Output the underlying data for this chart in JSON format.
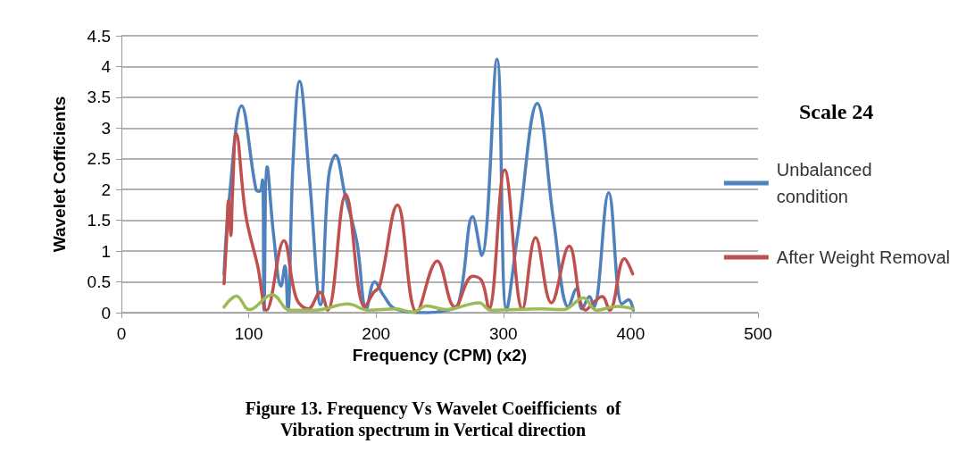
{
  "chart_data": {
    "type": "line",
    "title": "Figure 13. Frequency Vs Wavelet Coeifficients  of\nVibration spectrum in Vertical direction",
    "xlabel": "Frequency (CPM) (x2)",
    "ylabel": "Wavelet Cofficients",
    "legend_title": "Scale 24",
    "series": [
      {
        "name": "Unbalanced condition",
        "color": "#4f81bd",
        "x": [
          80.6,
          84.6,
          94.4,
          105.7,
          108.5,
          110.8,
          112,
          114.5,
          119.6,
          125.4,
          128.4,
          130.7,
          134.8,
          139.9,
          147.6,
          156.4,
          162.7,
          168.1,
          175.6,
          184.9,
          192.4,
          198.9,
          205.9,
          215.2,
          241,
          255.3,
          264.6,
          275.9,
          282.9,
          295,
          302.5,
          311.4,
          326.6,
          339.5,
          351.2,
          357.5,
          361.7,
          367.6,
          371,
          382.7,
          393.2,
          398.4,
          402
        ],
        "values": [
          0.62,
          1.83,
          3.36,
          2.0,
          1.97,
          2.16,
          0.04,
          2.37,
          1.25,
          0.43,
          0.76,
          0.04,
          2.45,
          3.76,
          2.2,
          0.13,
          2.2,
          2.56,
          1.92,
          1.15,
          0.06,
          0.5,
          0.28,
          0.06,
          0,
          0.04,
          0.13,
          1.56,
          0.93,
          4.12,
          0.04,
          1.29,
          3.4,
          1.49,
          0.09,
          0.39,
          0.06,
          0.26,
          0.09,
          1.95,
          0.14,
          0.21,
          0.04
        ]
      },
      {
        "name": "After Weight Removal",
        "color": "#c0504d",
        "x": [
          80.6,
          82.5,
          84.1,
          86,
          87.2,
          90.2,
          97.7,
          107,
          114,
          127.6,
          137.4,
          146.7,
          156,
          161.9,
          176.2,
          191.1,
          198.2,
          202.8,
          216.8,
          232,
          248,
          262,
          275.9,
          283,
          288.6,
          301,
          315,
          325.3,
          337.7,
          351.7,
          364.6,
          377.5,
          383.4,
          395.1,
          401.6
        ],
        "values": [
          0.47,
          1.15,
          1.83,
          1.25,
          1.92,
          2.91,
          1.58,
          0.76,
          0.04,
          1.17,
          0.23,
          0.06,
          0.33,
          0.04,
          1.92,
          0.09,
          0.33,
          0.43,
          1.75,
          0.01,
          0.84,
          0.09,
          0.59,
          0.52,
          0.06,
          2.32,
          0.06,
          1.22,
          0.16,
          1.08,
          0.04,
          0.26,
          0.04,
          0.88,
          0.63
        ]
      },
      {
        "color": "#9bbb59",
        "x": [
          80.6,
          90.4,
          100.4,
          118.4,
          132.5,
          152,
          177.8,
          194,
          215,
          229,
          239.7,
          255,
          281,
          290,
          330,
          347,
          363,
          373,
          389.6,
          402
        ],
        "values": [
          0.09,
          0.27,
          0.05,
          0.29,
          0.04,
          0.04,
          0.14,
          0.04,
          0.06,
          0.01,
          0.11,
          0.05,
          0.16,
          0.04,
          0.06,
          0.05,
          0.24,
          0.04,
          0.1,
          0.06
        ]
      }
    ],
    "xlim": [
      0,
      500
    ],
    "xticks": [
      0,
      100,
      200,
      300,
      400,
      500
    ],
    "ylim": [
      0,
      4.5
    ],
    "yticks": [
      0,
      0.5,
      1,
      1.5,
      2,
      2.5,
      3,
      3.5,
      4,
      4.5
    ],
    "grid": "y",
    "legend": "right",
    "marker": "none",
    "line_style": "solid"
  }
}
